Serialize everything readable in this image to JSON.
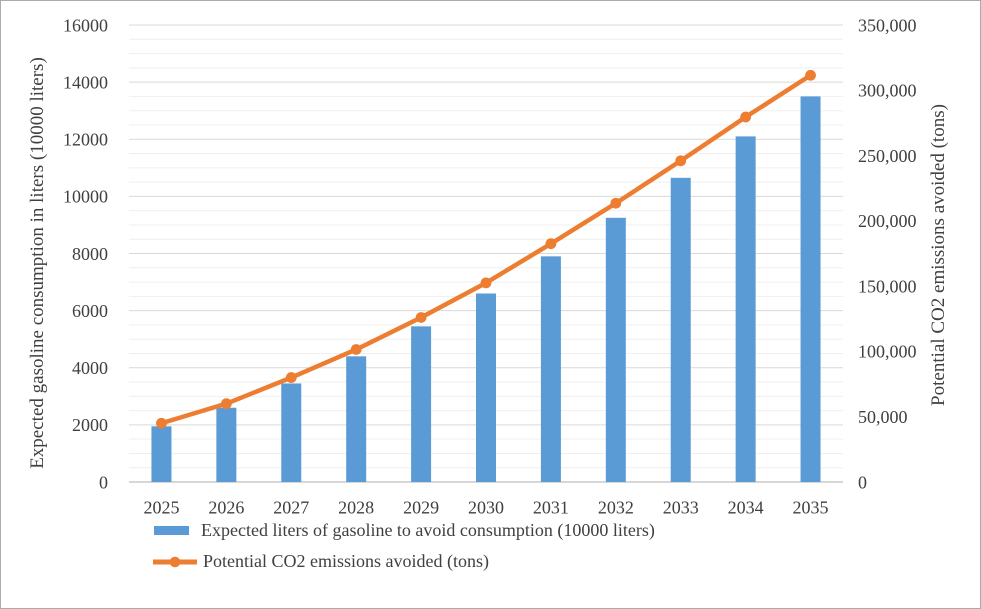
{
  "chart_data": {
    "type": "combo",
    "categories": [
      "2025",
      "2026",
      "2027",
      "2028",
      "2029",
      "2030",
      "2031",
      "2032",
      "2033",
      "2034",
      "2035"
    ],
    "series": [
      {
        "name": "Expected liters of gasoline to avoid consumption (10000 liters)",
        "type": "bar",
        "axis": "left",
        "color": "#5B9BD5",
        "values": [
          1950,
          2600,
          3450,
          4400,
          5450,
          6600,
          7900,
          9250,
          10650,
          12100,
          13500
        ]
      },
      {
        "name": "Potential CO2 emissions avoided (tons)",
        "type": "line",
        "axis": "right",
        "color": "#ED7D31",
        "values": [
          45000,
          60000,
          80000,
          101500,
          126000,
          152500,
          182500,
          213500,
          246000,
          279500,
          311500
        ]
      }
    ],
    "left_axis": {
      "title": "Expected gasoline consumption in liters (10000 liters)",
      "min": 0,
      "max": 16000,
      "major_step": 2000,
      "minor_step": 500,
      "tick_labels": [
        "0",
        "2000",
        "4000",
        "6000",
        "8000",
        "10000",
        "12000",
        "14000",
        "16000"
      ]
    },
    "right_axis": {
      "title": "Potential CO2 emissions avoided (tons)",
      "min": 0,
      "max": 350000,
      "major_step": 50000,
      "tick_labels": [
        "0",
        "50,000",
        "100,000",
        "150,000",
        "200,000",
        "250,000",
        "300,000",
        "350,000"
      ]
    },
    "legend": {
      "position": "bottom-left"
    },
    "grid": {
      "show": true,
      "major_color": "#D9D9D9",
      "minor_color": "#EFEFEF",
      "axis_line_color": "#BFBFBF"
    },
    "text_color": "#404040",
    "background": "#FFFFFF"
  }
}
